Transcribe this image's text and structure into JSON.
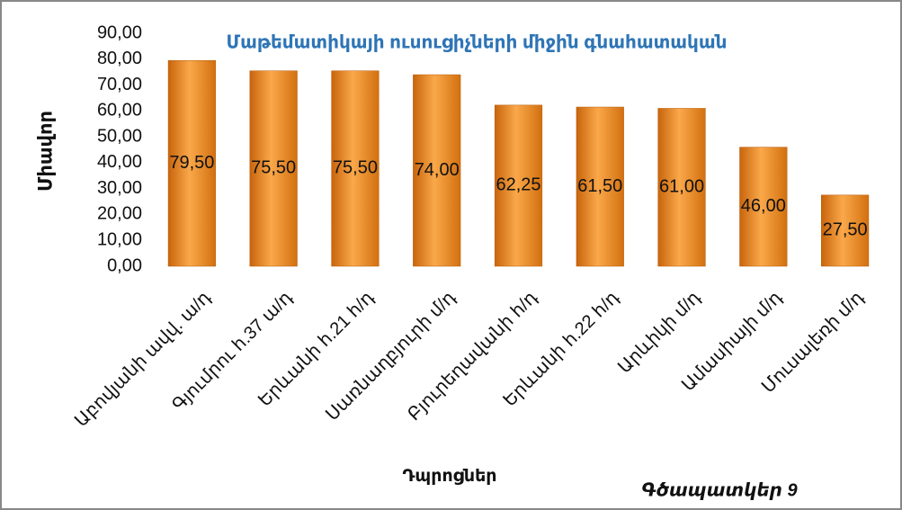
{
  "chart_data": {
    "type": "bar",
    "title": "Մաթեմատիկայի ուսուցիչների միջին գնահատական",
    "y_label": "Միավոր",
    "x_label": "Դպրոցներ",
    "annotation": "Գծապատկեր 9",
    "categories": [
      "Աբովյանի ավվ. ա/դ",
      "Գյումրու հ.37 ա/դ",
      "Երևանի հ.21 հ/դ",
      "Սառնաղբյուրի մ/դ",
      "Բյուրեղավանի հ/դ",
      "Երևանի հ.22 հ/դ",
      "Արևիկի մ/դ",
      "Ամասիայի մ/դ",
      "Մուսալեռի մ/դ"
    ],
    "values": [
      79.5,
      75.5,
      75.5,
      74,
      62.25,
      61.5,
      61,
      46,
      27.5
    ],
    "value_labels": [
      "79,50",
      "75,50",
      "75,50",
      "74,00",
      "62,25",
      "61,50",
      "61,00",
      "46,00",
      "27,50"
    ],
    "color": "#f0901e",
    "ylim": [
      0,
      90
    ],
    "yticks": [
      {
        "value": 0,
        "label": "0,00"
      },
      {
        "value": 10,
        "label": "10,00"
      },
      {
        "value": 20,
        "label": "20,00"
      },
      {
        "value": 30,
        "label": "30,00"
      },
      {
        "value": 40,
        "label": "40,00"
      },
      {
        "value": 50,
        "label": "50,00"
      },
      {
        "value": 60,
        "label": "60,00"
      },
      {
        "value": 70,
        "label": "70,00"
      },
      {
        "value": 80,
        "label": "80,00"
      },
      {
        "value": 90,
        "label": "90,00"
      }
    ],
    "grid": false
  }
}
